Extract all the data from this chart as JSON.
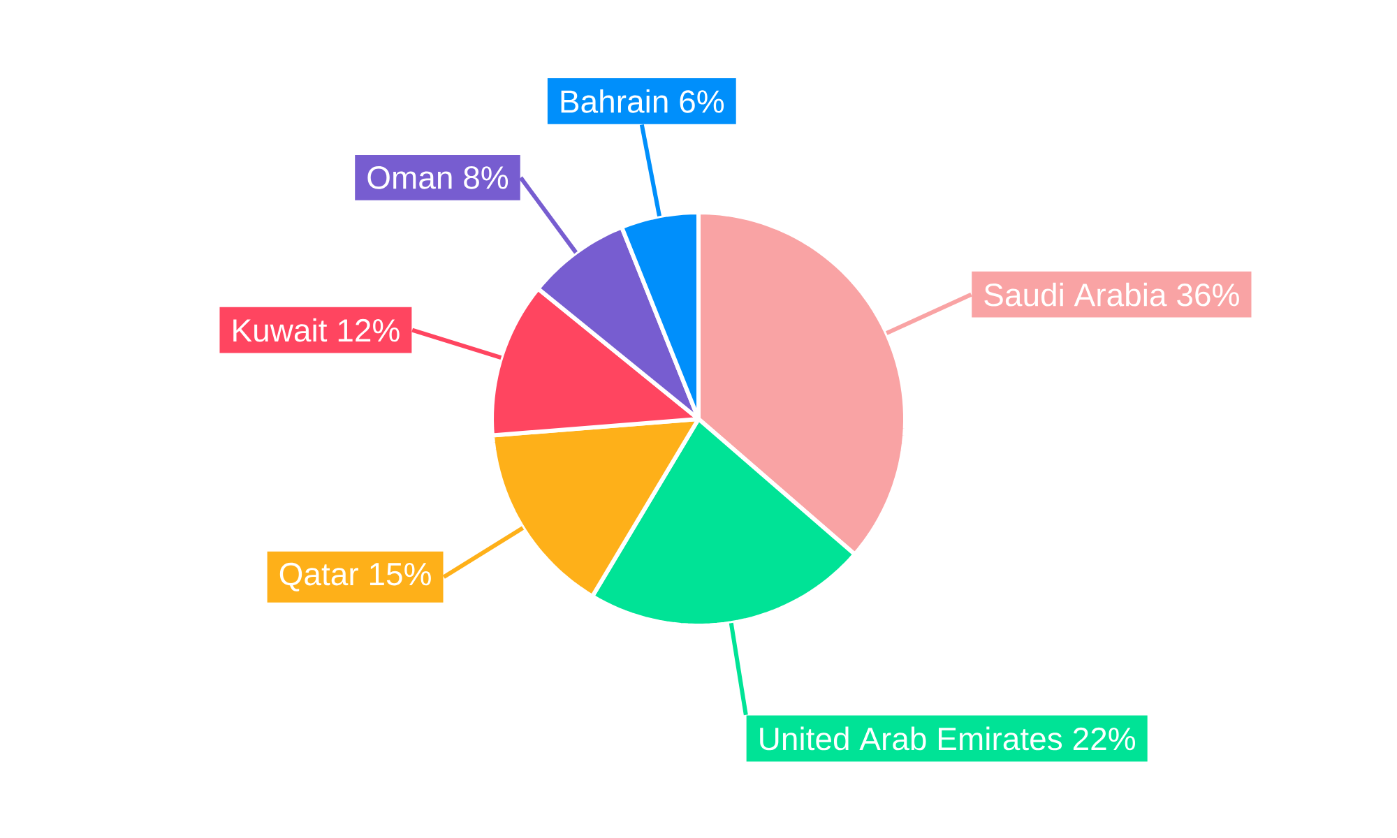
{
  "chart_data": {
    "type": "pie",
    "categories": [
      "Saudi Arabia",
      "United Arab Emirates",
      "Qatar",
      "Kuwait",
      "Oman",
      "Bahrain"
    ],
    "values": [
      36,
      22,
      15,
      12,
      8,
      6
    ],
    "value_labels": [
      "36%",
      "22%",
      "15%",
      "12%",
      "8%",
      "6%"
    ],
    "colors": [
      "#f9a3a4",
      "#00e396",
      "#feb019",
      "#ff4560",
      "#775dd0",
      "#008ffb"
    ]
  }
}
